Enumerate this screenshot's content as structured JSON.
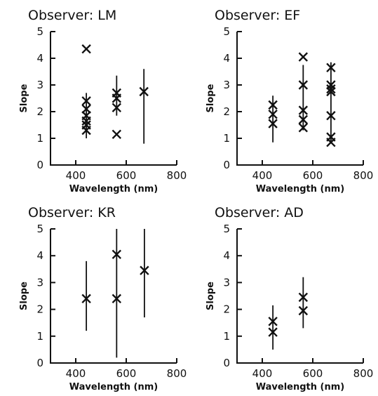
{
  "chart_data": [
    {
      "type": "scatter",
      "title": "Observer: LM",
      "xlabel": "Wavelength (nm)",
      "ylabel": "Slope",
      "xlim": [
        300,
        800
      ],
      "ylim": [
        0,
        5
      ],
      "xticks": [
        "400",
        "600",
        "800"
      ],
      "yticks": [
        "0",
        "1",
        "2",
        "3",
        "4",
        "5"
      ],
      "grid": false,
      "points": [
        {
          "x": 442,
          "y": 4.35
        },
        {
          "x": 442,
          "y": 2.4
        },
        {
          "x": 442,
          "y": 2.1
        },
        {
          "x": 442,
          "y": 1.85
        },
        {
          "x": 442,
          "y": 1.65
        },
        {
          "x": 442,
          "y": 1.5
        },
        {
          "x": 442,
          "y": 1.3
        },
        {
          "x": 562,
          "y": 2.7
        },
        {
          "x": 562,
          "y": 2.5
        },
        {
          "x": 562,
          "y": 2.15
        },
        {
          "x": 562,
          "y": 1.15
        },
        {
          "x": 670,
          "y": 2.75
        }
      ],
      "error_bars": [
        {
          "x": 442,
          "low": 1.0,
          "high": 2.7
        },
        {
          "x": 562,
          "low": 1.85,
          "high": 3.35
        },
        {
          "x": 670,
          "low": 0.8,
          "high": 3.6
        }
      ]
    },
    {
      "type": "scatter",
      "title": "Observer: EF",
      "xlabel": "Wavelength (nm)",
      "ylabel": "Slope",
      "xlim": [
        300,
        800
      ],
      "ylim": [
        0,
        5
      ],
      "xticks": [
        "400",
        "600",
        "800"
      ],
      "yticks": [
        "0",
        "1",
        "2",
        "3",
        "4",
        "5"
      ],
      "grid": false,
      "points": [
        {
          "x": 442,
          "y": 2.25
        },
        {
          "x": 442,
          "y": 1.9
        },
        {
          "x": 442,
          "y": 1.55
        },
        {
          "x": 562,
          "y": 4.05
        },
        {
          "x": 562,
          "y": 3.0
        },
        {
          "x": 562,
          "y": 2.05
        },
        {
          "x": 562,
          "y": 1.7
        },
        {
          "x": 562,
          "y": 1.4
        },
        {
          "x": 672,
          "y": 3.65
        },
        {
          "x": 672,
          "y": 3.0
        },
        {
          "x": 672,
          "y": 2.85
        },
        {
          "x": 672,
          "y": 2.75
        },
        {
          "x": 672,
          "y": 1.85
        },
        {
          "x": 672,
          "y": 1.05
        },
        {
          "x": 672,
          "y": 0.85
        }
      ],
      "error_bars": [
        {
          "x": 442,
          "low": 0.85,
          "high": 2.6
        },
        {
          "x": 562,
          "low": 1.3,
          "high": 3.75
        },
        {
          "x": 672,
          "low": 0.8,
          "high": 3.85
        }
      ]
    },
    {
      "type": "scatter",
      "title": "Observer: KR",
      "xlabel": "Wavelength (nm)",
      "ylabel": "Slope",
      "xlim": [
        300,
        800
      ],
      "ylim": [
        0,
        5
      ],
      "xticks": [
        "400",
        "600",
        "800"
      ],
      "yticks": [
        "0",
        "1",
        "2",
        "3",
        "4",
        "5"
      ],
      "grid": false,
      "points": [
        {
          "x": 442,
          "y": 2.4
        },
        {
          "x": 562,
          "y": 4.05
        },
        {
          "x": 562,
          "y": 2.4
        },
        {
          "x": 672,
          "y": 3.45
        }
      ],
      "error_bars": [
        {
          "x": 442,
          "low": 1.2,
          "high": 3.8
        },
        {
          "x": 562,
          "low": 0.2,
          "high": 5.0
        },
        {
          "x": 672,
          "low": 1.7,
          "high": 5.0
        }
      ]
    },
    {
      "type": "scatter",
      "title": "Observer: AD",
      "xlabel": "Wavelength (nm)",
      "ylabel": "Slope",
      "xlim": [
        300,
        800
      ],
      "ylim": [
        0,
        5
      ],
      "xticks": [
        "400",
        "600",
        "800"
      ],
      "yticks": [
        "0",
        "1",
        "2",
        "3",
        "4",
        "5"
      ],
      "grid": false,
      "points": [
        {
          "x": 442,
          "y": 1.55
        },
        {
          "x": 442,
          "y": 1.15
        },
        {
          "x": 562,
          "y": 2.45
        },
        {
          "x": 562,
          "y": 1.95
        }
      ],
      "error_bars": [
        {
          "x": 442,
          "low": 0.5,
          "high": 2.15
        },
        {
          "x": 562,
          "low": 1.3,
          "high": 3.2
        }
      ]
    }
  ]
}
